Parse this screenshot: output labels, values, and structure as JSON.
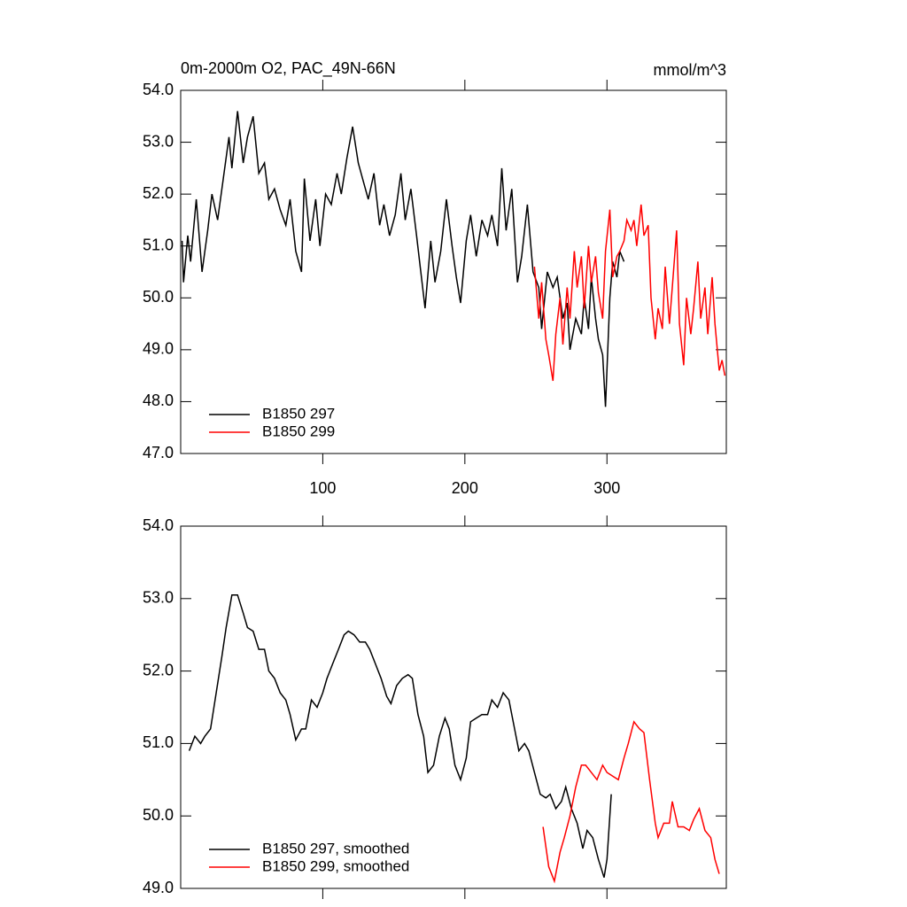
{
  "chart_data": [
    {
      "type": "line",
      "title": "0m-2000m O2, PAC_49N-66N",
      "units": "mmol/m^3",
      "xlim": [
        0,
        384
      ],
      "xticks": [
        100,
        200,
        300
      ],
      "ylim": [
        47,
        54
      ],
      "yticks": [
        {
          "value": 47,
          "label": "47.0"
        },
        {
          "value": 48,
          "label": "48.0"
        },
        {
          "value": 49,
          "label": "49.0"
        },
        {
          "value": 50,
          "label": "50.0"
        },
        {
          "value": 51,
          "label": "51.0"
        },
        {
          "value": 52,
          "label": "52.0"
        },
        {
          "value": 53,
          "label": "53.0"
        },
        {
          "value": 54,
          "label": "54.0"
        }
      ],
      "legend": "lower left",
      "series": [
        {
          "name": "B1850 297",
          "color": "#000000",
          "x": [
            1,
            2,
            5,
            7,
            11,
            15,
            19,
            22,
            26,
            30,
            34,
            36,
            40,
            44,
            47,
            51,
            55,
            59,
            62,
            66,
            70,
            74,
            77,
            81,
            85,
            87,
            91,
            95,
            98,
            102,
            106,
            110,
            113,
            117,
            121,
            125,
            128,
            132,
            136,
            140,
            143,
            147,
            151,
            155,
            158,
            162,
            166,
            169,
            172,
            176,
            179,
            183,
            187,
            191,
            194,
            197,
            201,
            204,
            208,
            212,
            216,
            219,
            223,
            226,
            229,
            233,
            237,
            240,
            244,
            248,
            252,
            254,
            258,
            262,
            265,
            269,
            272,
            274,
            278,
            282,
            284,
            287,
            289,
            292,
            294,
            297,
            299,
            302,
            304,
            307,
            309,
            312
          ],
          "values": [
            51.1,
            50.3,
            51.2,
            50.7,
            51.9,
            50.5,
            51.3,
            52.0,
            51.5,
            52.3,
            53.1,
            52.5,
            53.6,
            52.6,
            53.1,
            53.5,
            52.4,
            52.6,
            51.9,
            52.1,
            51.7,
            51.4,
            51.9,
            50.9,
            50.5,
            52.3,
            51.1,
            51.9,
            51.0,
            52.0,
            51.8,
            52.4,
            52.0,
            52.7,
            53.3,
            52.6,
            52.3,
            51.9,
            52.4,
            51.4,
            51.8,
            51.2,
            51.6,
            52.4,
            51.5,
            52.1,
            51.2,
            50.5,
            49.8,
            51.1,
            50.3,
            50.9,
            51.9,
            51.0,
            50.4,
            49.9,
            51.1,
            51.6,
            50.8,
            51.5,
            51.2,
            51.6,
            51.0,
            52.5,
            51.3,
            52.1,
            50.3,
            50.8,
            51.8,
            50.5,
            50.2,
            49.4,
            50.5,
            50.2,
            50.4,
            49.6,
            49.9,
            49.0,
            49.6,
            49.3,
            50.0,
            49.4,
            50.4,
            49.6,
            49.2,
            48.9,
            47.9,
            50.0,
            50.7,
            50.4,
            50.9,
            50.7
          ]
        },
        {
          "name": "B1850 299",
          "color": "#ff0000",
          "x": [
            249,
            252,
            254,
            257,
            259,
            262,
            264,
            267,
            269,
            272,
            274,
            277,
            279,
            282,
            284,
            287,
            289,
            292,
            294,
            297,
            299,
            302,
            304,
            307,
            309,
            312,
            314,
            317,
            319,
            321,
            324,
            326,
            329,
            331,
            334,
            336,
            339,
            341,
            344,
            346,
            349,
            351,
            354,
            356,
            359,
            361,
            364,
            366,
            369,
            371,
            374,
            376,
            379,
            381,
            383
          ],
          "values": [
            50.6,
            49.6,
            50.3,
            49.2,
            48.9,
            48.4,
            49.3,
            50.0,
            49.1,
            50.2,
            49.6,
            50.9,
            50.2,
            50.8,
            49.8,
            51.0,
            50.3,
            50.8,
            50.1,
            49.6,
            50.9,
            51.7,
            50.4,
            50.8,
            50.9,
            51.1,
            51.5,
            51.3,
            51.5,
            51.0,
            51.8,
            51.2,
            51.4,
            50.0,
            49.2,
            49.8,
            49.4,
            50.6,
            49.5,
            50.2,
            51.3,
            49.5,
            48.7,
            50.0,
            49.3,
            49.8,
            50.7,
            49.6,
            50.2,
            49.3,
            50.4,
            49.5,
            48.6,
            48.8,
            48.5
          ]
        }
      ]
    },
    {
      "type": "line",
      "xlim": [
        0,
        384
      ],
      "xticks": [
        100,
        200,
        300
      ],
      "ylim": [
        49,
        54
      ],
      "yticks": [
        {
          "value": 49,
          "label": "49.0"
        },
        {
          "value": 50,
          "label": "50.0"
        },
        {
          "value": 51,
          "label": "51.0"
        },
        {
          "value": 52,
          "label": "52.0"
        },
        {
          "value": 53,
          "label": "53.0"
        },
        {
          "value": 54,
          "label": "54.0"
        }
      ],
      "legend": "lower left",
      "series": [
        {
          "name": "B1850 297, smoothed",
          "color": "#000000",
          "x": [
            6,
            10,
            14,
            17,
            21,
            25,
            29,
            32,
            36,
            40,
            44,
            47,
            51,
            55,
            59,
            62,
            66,
            70,
            74,
            77,
            81,
            85,
            88,
            92,
            96,
            100,
            103,
            107,
            111,
            115,
            118,
            122,
            126,
            130,
            133,
            137,
            141,
            145,
            148,
            152,
            156,
            160,
            163,
            167,
            171,
            174,
            178,
            182,
            186,
            189,
            193,
            197,
            201,
            204,
            208,
            212,
            216,
            219,
            223,
            227,
            231,
            234,
            238,
            242,
            245,
            249,
            253,
            257,
            260,
            264,
            268,
            271,
            275,
            279,
            283,
            286,
            290,
            294,
            298,
            300,
            303
          ],
          "values": [
            50.9,
            51.1,
            51.0,
            51.1,
            51.2,
            51.7,
            52.2,
            52.6,
            53.05,
            53.05,
            52.8,
            52.6,
            52.55,
            52.3,
            52.3,
            52.0,
            51.9,
            51.7,
            51.6,
            51.4,
            51.05,
            51.2,
            51.2,
            51.6,
            51.5,
            51.7,
            51.9,
            52.1,
            52.3,
            52.5,
            52.55,
            52.5,
            52.4,
            52.4,
            52.3,
            52.1,
            51.9,
            51.65,
            51.55,
            51.8,
            51.9,
            51.95,
            51.9,
            51.4,
            51.1,
            50.6,
            50.7,
            51.1,
            51.35,
            51.2,
            50.7,
            50.5,
            50.8,
            51.3,
            51.35,
            51.4,
            51.4,
            51.6,
            51.5,
            51.7,
            51.6,
            51.3,
            50.9,
            51.0,
            50.9,
            50.6,
            50.3,
            50.25,
            50.3,
            50.1,
            50.2,
            50.4,
            50.1,
            49.9,
            49.55,
            49.8,
            49.7,
            49.4,
            49.15,
            49.4,
            50.3
          ]
        },
        {
          "name": "B1850 299, smoothed",
          "color": "#ff0000",
          "x": [
            255,
            259,
            263,
            267,
            270,
            274,
            278,
            282,
            285,
            289,
            293,
            297,
            300,
            304,
            308,
            312,
            315,
            319,
            323,
            326,
            330,
            334,
            336,
            340,
            344,
            346,
            350,
            354,
            358,
            361,
            365,
            369,
            373,
            376,
            379
          ],
          "values": [
            49.85,
            49.3,
            49.1,
            49.5,
            49.7,
            50.0,
            50.4,
            50.7,
            50.7,
            50.6,
            50.5,
            50.7,
            50.6,
            50.55,
            50.5,
            50.8,
            51.0,
            51.3,
            51.2,
            51.15,
            50.5,
            49.9,
            49.7,
            49.9,
            49.9,
            50.2,
            49.85,
            49.85,
            49.8,
            49.95,
            50.1,
            49.8,
            49.7,
            49.4,
            49.2
          ]
        }
      ]
    }
  ]
}
